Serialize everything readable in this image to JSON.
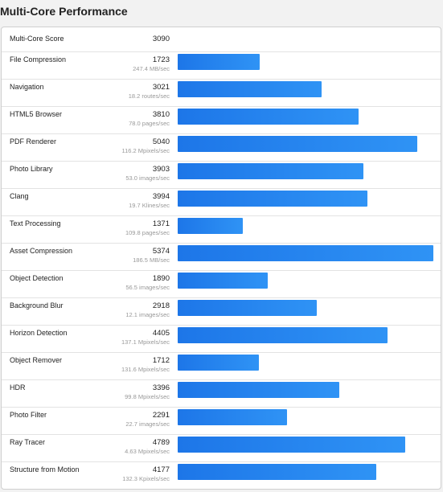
{
  "page": {
    "title": "Multi-Core Performance"
  },
  "summary": {
    "label": "Multi-Core Score",
    "score": "3090"
  },
  "bar_color": "#2f93f5",
  "max_score": 5374,
  "benchmarks": [
    {
      "name": "File Compression",
      "score": "1723",
      "rate": "247.4 MB/sec"
    },
    {
      "name": "Navigation",
      "score": "3021",
      "rate": "18.2 routes/sec"
    },
    {
      "name": "HTML5 Browser",
      "score": "3810",
      "rate": "78.0 pages/sec"
    },
    {
      "name": "PDF Renderer",
      "score": "5040",
      "rate": "116.2 Mpixels/sec"
    },
    {
      "name": "Photo Library",
      "score": "3903",
      "rate": "53.0 images/sec"
    },
    {
      "name": "Clang",
      "score": "3994",
      "rate": "19.7 Klines/sec"
    },
    {
      "name": "Text Processing",
      "score": "1371",
      "rate": "109.8 pages/sec"
    },
    {
      "name": "Asset Compression",
      "score": "5374",
      "rate": "186.5 MB/sec"
    },
    {
      "name": "Object Detection",
      "score": "1890",
      "rate": "56.5 images/sec"
    },
    {
      "name": "Background Blur",
      "score": "2918",
      "rate": "12.1 images/sec"
    },
    {
      "name": "Horizon Detection",
      "score": "4405",
      "rate": "137.1 Mpixels/sec"
    },
    {
      "name": "Object Remover",
      "score": "1712",
      "rate": "131.6 Mpixels/sec"
    },
    {
      "name": "HDR",
      "score": "3396",
      "rate": "99.8 Mpixels/sec"
    },
    {
      "name": "Photo Filter",
      "score": "2291",
      "rate": "22.7 images/sec"
    },
    {
      "name": "Ray Tracer",
      "score": "4789",
      "rate": "4.63 Mpixels/sec"
    },
    {
      "name": "Structure from Motion",
      "score": "4177",
      "rate": "132.3 Kpixels/sec"
    }
  ]
}
